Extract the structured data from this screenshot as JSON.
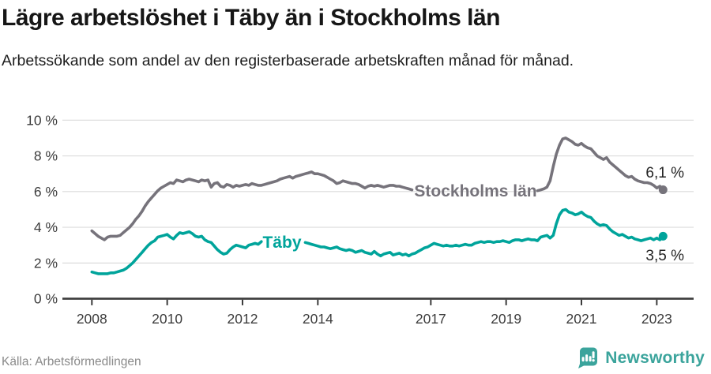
{
  "header": {
    "title": "Lägre arbetslöshet i Täby än i Stockholms län",
    "subtitle": "Arbetssökande som andel av den registerbaserade arbetskraften månad för månad."
  },
  "chart_data": {
    "type": "line",
    "x_unit": "month",
    "x_range": [
      "2008-01",
      "2023-03"
    ],
    "ylim": [
      0,
      10
    ],
    "grid": "horizontal",
    "colors": {
      "grid": "#dcdcdc",
      "axis": "#3b3b3b",
      "tick_label": "#3c3c3c",
      "end_label": "#232323"
    },
    "y_ticks": [
      {
        "value": 0,
        "label": "0 %"
      },
      {
        "value": 2,
        "label": "2 %"
      },
      {
        "value": 4,
        "label": "4 %"
      },
      {
        "value": 6,
        "label": "6 %"
      },
      {
        "value": 8,
        "label": "8 %"
      },
      {
        "value": 10,
        "label": "10 %"
      }
    ],
    "x_ticks": [
      {
        "year": 2008,
        "label": "2008"
      },
      {
        "year": 2010,
        "label": "2010"
      },
      {
        "year": 2012,
        "label": "2012"
      },
      {
        "year": 2014,
        "label": "2014"
      },
      {
        "year": 2017,
        "label": "2017"
      },
      {
        "year": 2019,
        "label": "2019"
      },
      {
        "year": 2021,
        "label": "2021"
      },
      {
        "year": 2023,
        "label": "2023"
      }
    ],
    "series": [
      {
        "name": "Stockholms län",
        "inline_label": "Stockholms län",
        "end_label": "6,1 %",
        "end_value": 6.1,
        "color": "#76737b",
        "values": [
          3.8,
          3.65,
          3.5,
          3.4,
          3.3,
          3.45,
          3.5,
          3.5,
          3.5,
          3.55,
          3.7,
          3.85,
          4.0,
          4.2,
          4.45,
          4.65,
          4.9,
          5.2,
          5.45,
          5.65,
          5.85,
          6.05,
          6.2,
          6.3,
          6.4,
          6.5,
          6.45,
          6.65,
          6.6,
          6.55,
          6.65,
          6.7,
          6.65,
          6.6,
          6.55,
          6.65,
          6.6,
          6.65,
          6.25,
          6.45,
          6.5,
          6.3,
          6.25,
          6.4,
          6.35,
          6.25,
          6.35,
          6.3,
          6.35,
          6.4,
          6.35,
          6.45,
          6.4,
          6.35,
          6.35,
          6.4,
          6.45,
          6.5,
          6.55,
          6.6,
          6.7,
          6.75,
          6.8,
          6.85,
          6.75,
          6.85,
          6.9,
          6.95,
          7.0,
          7.05,
          7.1,
          7.0,
          7.0,
          6.95,
          6.9,
          6.8,
          6.7,
          6.6,
          6.45,
          6.5,
          6.6,
          6.55,
          6.5,
          6.45,
          6.45,
          6.4,
          6.3,
          6.2,
          6.3,
          6.35,
          6.3,
          6.35,
          6.3,
          6.25,
          6.3,
          6.35,
          6.35,
          6.3,
          6.3,
          6.25,
          6.2,
          6.15,
          6.1,
          null,
          null,
          null,
          null,
          null,
          null,
          null,
          null,
          null,
          null,
          null,
          null,
          null,
          null,
          null,
          null,
          null,
          null,
          null,
          null,
          null,
          null,
          null,
          null,
          null,
          null,
          null,
          null,
          null,
          null,
          null,
          null,
          null,
          null,
          null,
          null,
          null,
          null,
          null,
          6.05,
          6.1,
          6.15,
          6.25,
          6.6,
          7.4,
          8.1,
          8.6,
          8.95,
          9.0,
          8.9,
          8.8,
          8.65,
          8.6,
          8.7,
          8.55,
          8.45,
          8.4,
          8.2,
          8.0,
          7.9,
          7.8,
          7.9,
          7.65,
          7.5,
          7.35,
          7.2,
          7.05,
          6.9,
          6.8,
          6.85,
          6.7,
          6.6,
          6.55,
          6.5,
          6.5,
          6.45,
          6.35,
          6.2,
          6.3,
          6.1
        ]
      },
      {
        "name": "Täby",
        "inline_label": "Täby",
        "end_label": "3,5 %",
        "end_value": 3.5,
        "color": "#00a49b",
        "values": [
          1.5,
          1.45,
          1.4,
          1.4,
          1.4,
          1.4,
          1.45,
          1.45,
          1.5,
          1.55,
          1.6,
          1.7,
          1.85,
          2.0,
          2.2,
          2.4,
          2.6,
          2.8,
          3.0,
          3.15,
          3.25,
          3.45,
          3.5,
          3.55,
          3.6,
          3.45,
          3.35,
          3.55,
          3.7,
          3.65,
          3.7,
          3.75,
          3.65,
          3.5,
          3.45,
          3.5,
          3.3,
          3.2,
          3.15,
          2.95,
          2.75,
          2.6,
          2.5,
          2.55,
          2.75,
          2.9,
          3.0,
          2.95,
          2.9,
          2.85,
          3.0,
          3.05,
          3.1,
          3.05,
          3.2,
          null,
          null,
          null,
          null,
          null,
          null,
          null,
          null,
          null,
          null,
          null,
          null,
          null,
          3.15,
          3.1,
          3.05,
          3.0,
          2.95,
          2.9,
          2.9,
          2.85,
          2.8,
          2.85,
          2.9,
          2.8,
          2.75,
          2.7,
          2.75,
          2.7,
          2.6,
          2.65,
          2.7,
          2.6,
          2.55,
          2.5,
          2.65,
          2.5,
          2.4,
          2.5,
          2.55,
          2.6,
          2.45,
          2.5,
          2.55,
          2.45,
          2.5,
          2.4,
          2.5,
          2.55,
          2.65,
          2.75,
          2.85,
          2.9,
          3.0,
          3.1,
          3.05,
          3.0,
          2.95,
          3.0,
          2.95,
          2.95,
          3.0,
          2.95,
          3.0,
          3.05,
          3.0,
          3.0,
          3.1,
          3.15,
          3.2,
          3.15,
          3.2,
          3.2,
          3.15,
          3.2,
          3.2,
          3.25,
          3.2,
          3.15,
          3.25,
          3.3,
          3.3,
          3.25,
          3.3,
          3.35,
          3.3,
          3.3,
          3.25,
          3.45,
          3.5,
          3.55,
          3.4,
          3.55,
          4.2,
          4.7,
          4.95,
          5.0,
          4.85,
          4.8,
          4.7,
          4.75,
          4.85,
          4.7,
          4.6,
          4.55,
          4.35,
          4.2,
          4.1,
          4.15,
          4.1,
          3.9,
          3.75,
          3.65,
          3.55,
          3.6,
          3.5,
          3.4,
          3.45,
          3.35,
          3.3,
          3.25,
          3.3,
          3.35,
          3.4,
          3.3,
          3.4,
          3.3,
          3.5
        ]
      }
    ]
  },
  "footer": {
    "source": "Källa: Arbetsförmedlingen",
    "brand": "Newsworthy"
  }
}
